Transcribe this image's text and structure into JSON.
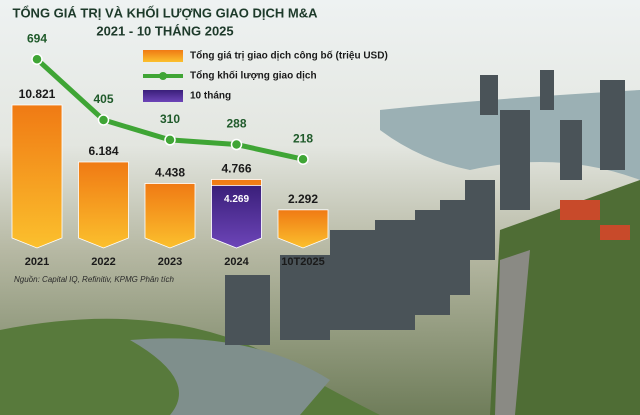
{
  "chart_data": {
    "type": "combo",
    "title": "TỔNG GIÁ TRỊ VÀ KHỐI LƯỢNG GIAO DỊCH M&A",
    "subtitle": "2021 - 10 THÁNG 2025",
    "source": "Nguồn: Capital IQ, Refinitiv, KPMG Phân tích",
    "categories": [
      "2021",
      "2022",
      "2023",
      "2024",
      "10T2025"
    ],
    "series": [
      {
        "name": "Tổng giá trị giao dịch công bố (triệu USD)",
        "type": "bar",
        "color": "#f39a1e",
        "values": [
          10821,
          6184,
          4438,
          4766,
          2292
        ],
        "value_labels": [
          "10.821",
          "6.184",
          "4.438",
          "4.766",
          "2.292"
        ]
      },
      {
        "name": "Tổng khối lượng giao dịch",
        "type": "line",
        "color": "#3fa535",
        "values": [
          694,
          405,
          310,
          288,
          218
        ]
      },
      {
        "name": "10 tháng",
        "type": "bar",
        "color": "#4b2a8c",
        "values": [
          null,
          null,
          null,
          4269,
          null
        ],
        "value_labels": [
          null,
          null,
          null,
          "4.269",
          null
        ]
      }
    ]
  }
}
